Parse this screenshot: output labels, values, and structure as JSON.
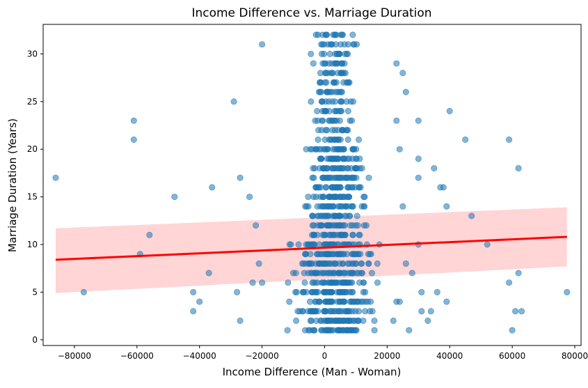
{
  "chart_data": {
    "type": "scatter",
    "title": "Income Difference vs. Marriage Duration",
    "xlabel": "Income Difference (Man - Woman)",
    "ylabel": "Marriage Duration (Years)",
    "xlim": [
      -90000,
      82000
    ],
    "ylim": [
      -0.6,
      33.1
    ],
    "xticks": [
      -80000,
      -60000,
      -40000,
      -20000,
      0,
      20000,
      40000,
      60000,
      80000
    ],
    "yticks": [
      0,
      5,
      10,
      15,
      20,
      25,
      30
    ],
    "grid": false,
    "legend": "none",
    "colors": {
      "points": "#1f77b4",
      "regression_line": "#ff0000",
      "confidence_band": "#ffb3b3"
    },
    "regression": {
      "x": [
        -86000,
        77500
      ],
      "y": [
        8.4,
        10.8
      ],
      "ci_lower": [
        4.9,
        7.7
      ],
      "ci_upper": [
        11.7,
        13.9
      ]
    },
    "outlier_points": [
      [
        -86000,
        17
      ],
      [
        -77000,
        5
      ],
      [
        -61000,
        23
      ],
      [
        -61000,
        21
      ],
      [
        -59000,
        9
      ],
      [
        -56000,
        11
      ],
      [
        -48000,
        15
      ],
      [
        -42000,
        5
      ],
      [
        -42000,
        3
      ],
      [
        -40000,
        4
      ],
      [
        -37000,
        7
      ],
      [
        -36000,
        16
      ],
      [
        -29000,
        25
      ],
      [
        -28000,
        5
      ],
      [
        -27000,
        17
      ],
      [
        -27000,
        2
      ],
      [
        -24000,
        15
      ],
      [
        -22000,
        12
      ],
      [
        -20000,
        31
      ],
      [
        -21000,
        8
      ],
      [
        -20000,
        6
      ],
      [
        -23000,
        6
      ],
      [
        23000,
        29
      ],
      [
        25000,
        28
      ],
      [
        26000,
        26
      ],
      [
        23000,
        23
      ],
      [
        24000,
        20
      ],
      [
        25000,
        14
      ],
      [
        26000,
        8
      ],
      [
        28000,
        7
      ],
      [
        24000,
        4
      ],
      [
        22000,
        2
      ],
      [
        23000,
        4
      ],
      [
        27000,
        1
      ],
      [
        30000,
        23
      ],
      [
        30000,
        19
      ],
      [
        30000,
        17
      ],
      [
        30000,
        10
      ],
      [
        31000,
        5
      ],
      [
        31000,
        3
      ],
      [
        33000,
        2
      ],
      [
        34000,
        3
      ],
      [
        35000,
        18
      ],
      [
        36000,
        5
      ],
      [
        37000,
        16
      ],
      [
        38000,
        16
      ],
      [
        39000,
        14
      ],
      [
        39000,
        4
      ],
      [
        40000,
        24
      ],
      [
        45000,
        21
      ],
      [
        47000,
        13
      ],
      [
        52000,
        10
      ],
      [
        59000,
        21
      ],
      [
        59000,
        6
      ],
      [
        60000,
        1
      ],
      [
        61000,
        3
      ],
      [
        62000,
        18
      ],
      [
        62000,
        7
      ],
      [
        63000,
        3
      ],
      [
        77500,
        5
      ]
    ],
    "dense_cluster": {
      "center_x": 3000,
      "spread_x": 6000,
      "y_range": [
        1,
        32
      ]
    }
  }
}
